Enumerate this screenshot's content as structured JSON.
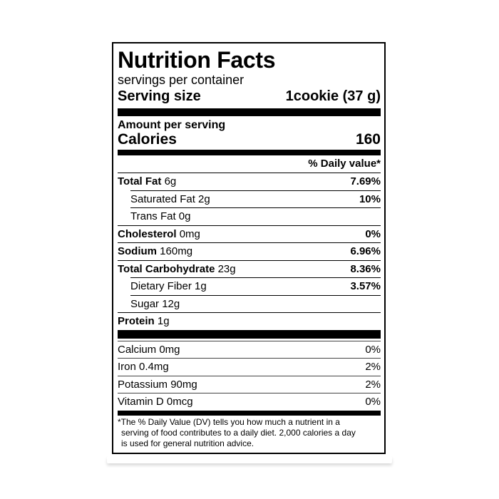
{
  "title": "Nutrition Facts",
  "servings_per_container": "servings per container",
  "serving_size": {
    "label": "Serving size",
    "value": "1cookie (37 g)"
  },
  "amount_per_serving": "Amount per serving",
  "calories": {
    "label": "Calories",
    "value": "160"
  },
  "daily_value_header": "% Daily value*",
  "nutrients": [
    {
      "label": "Total Fat",
      "amount": "6g",
      "dv": "7.69%"
    },
    {
      "label": "Saturated Fat 2g",
      "amount": "",
      "dv": "10%"
    },
    {
      "label": "Trans Fat 0g",
      "amount": "",
      "dv": ""
    },
    {
      "label": "Cholesterol",
      "amount": "0mg",
      "dv": "0%"
    },
    {
      "label": "Sodium",
      "amount": "160mg",
      "dv": "6.96%"
    },
    {
      "label": "Total Carbohydrate",
      "amount": "23g",
      "dv": "8.36%"
    },
    {
      "label": "Dietary Fiber 1g",
      "amount": "",
      "dv": "3.57%"
    },
    {
      "label": "Sugar 12g",
      "amount": "",
      "dv": ""
    },
    {
      "label": "Protein",
      "amount": "1g",
      "dv": ""
    }
  ],
  "vitamins": [
    {
      "label": "Calcium 0mg",
      "dv": "0%"
    },
    {
      "label": "Iron 0.4mg",
      "dv": "2%"
    },
    {
      "label": "Potassium 90mg",
      "dv": "2%"
    },
    {
      "label": "Vitamin D 0mcg",
      "dv": "0%"
    }
  ],
  "footnote": [
    "*The % Daily Value (DV) tells you how much a nutrient in a",
    "serving of food contributes to a daily diet. 2,000 calories a day",
    "is used for general nutrition advice."
  ]
}
